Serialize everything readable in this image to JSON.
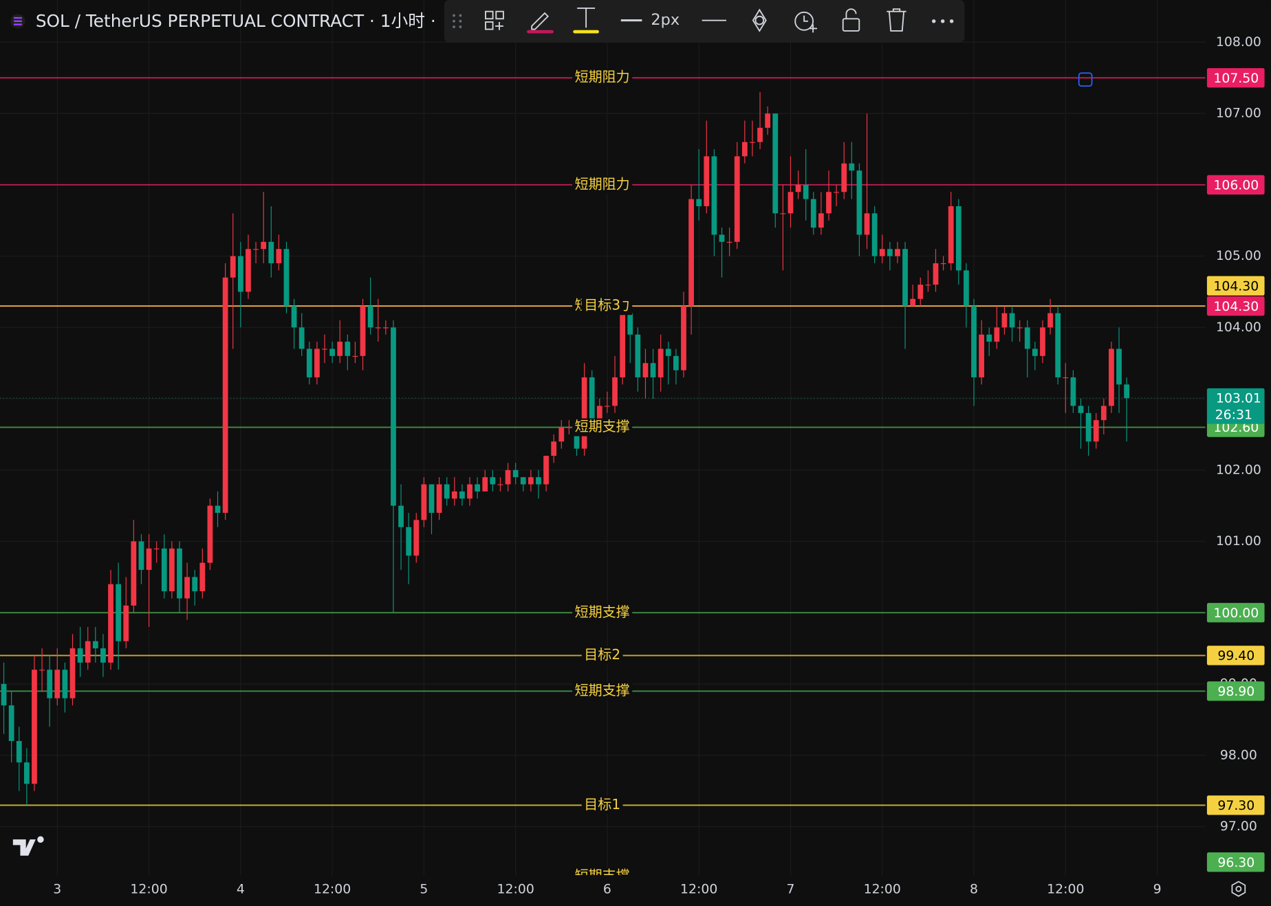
{
  "chart_data": {
    "type": "candlestick",
    "title": "SOL / TetherUS PERPETUAL CONTRACT · 1小时 ·",
    "up_color": "#f23645",
    "down_color": "#089981",
    "open": [
      99.0,
      98.7,
      98.2,
      97.9,
      97.6,
      99.2,
      99.2,
      98.8,
      99.2,
      98.8,
      99.5,
      99.3,
      99.6,
      99.5,
      99.3,
      100.4,
      99.6,
      100.1,
      101.0,
      100.6,
      100.9,
      100.9,
      100.3,
      100.9,
      100.2,
      100.5,
      100.3,
      100.7,
      101.5,
      101.4,
      104.7,
      105.0,
      104.5,
      105.1,
      105.1,
      105.2,
      104.9,
      105.1,
      104.3,
      104.0,
      103.7,
      103.3,
      103.7,
      103.7,
      103.6,
      103.8,
      103.6,
      103.6,
      104.3,
      104.0,
      104.0,
      104.0,
      101.5,
      101.2,
      100.8,
      101.3,
      101.8,
      101.4,
      101.8,
      101.6,
      101.7,
      101.6,
      101.8,
      101.7,
      101.9,
      101.8,
      101.8,
      102.0,
      101.9,
      101.8,
      101.9,
      101.8,
      102.2,
      102.4,
      102.6,
      102.6,
      102.3,
      103.3,
      102.6,
      102.9,
      102.9,
      103.3,
      104.2,
      103.9,
      103.3,
      103.5,
      103.3,
      103.7,
      103.6,
      103.4,
      104.3,
      105.8,
      105.7,
      106.4,
      105.3,
      105.2,
      105.2,
      106.4,
      106.6,
      106.6,
      106.8,
      107.0,
      105.6,
      105.6,
      105.9,
      106.0,
      105.8,
      105.4,
      105.6,
      105.9,
      105.9,
      106.3,
      106.2,
      105.3,
      105.6,
      105.0,
      105.1,
      105.0,
      105.1,
      104.3,
      104.4,
      104.6,
      104.6,
      104.9,
      104.9,
      105.7,
      104.8,
      104.3,
      103.3,
      103.9,
      103.8,
      104.0,
      104.2,
      104.0,
      104.0,
      103.7,
      103.6,
      104.0,
      104.2,
      103.3,
      103.3,
      102.9,
      102.8,
      102.4,
      102.7,
      102.9,
      103.7,
      103.2
    ],
    "high": [
      99.3,
      98.9,
      98.4,
      98.1,
      99.4,
      99.5,
      99.4,
      99.5,
      99.3,
      99.7,
      99.8,
      99.8,
      99.8,
      99.7,
      100.6,
      100.7,
      100.5,
      101.3,
      101.1,
      101.1,
      101.0,
      101.1,
      101.0,
      101.0,
      100.7,
      100.6,
      100.9,
      101.6,
      101.7,
      104.9,
      105.6,
      105.2,
      105.3,
      105.2,
      105.9,
      105.7,
      105.3,
      105.2,
      104.4,
      104.2,
      103.8,
      103.8,
      103.9,
      103.8,
      104.1,
      103.9,
      103.8,
      104.4,
      104.7,
      104.4,
      104.1,
      104.1,
      101.8,
      101.4,
      101.4,
      101.9,
      101.8,
      101.9,
      101.9,
      101.9,
      101.8,
      101.9,
      101.9,
      102.0,
      102.0,
      101.9,
      102.1,
      102.1,
      101.9,
      102.0,
      102.0,
      102.2,
      102.5,
      102.7,
      102.7,
      102.6,
      103.5,
      103.4,
      103.0,
      103.1,
      103.6,
      104.3,
      104.3,
      104.0,
      103.7,
      103.7,
      103.9,
      103.8,
      103.7,
      104.5,
      106.0,
      106.5,
      106.9,
      106.5,
      105.4,
      105.4,
      106.6,
      106.9,
      106.9,
      107.3,
      107.1,
      107.0,
      106.0,
      106.4,
      106.2,
      106.5,
      105.9,
      105.9,
      106.2,
      106.0,
      106.6,
      106.6,
      106.3,
      107.0,
      105.7,
      105.3,
      105.2,
      105.2,
      105.2,
      104.6,
      104.7,
      104.8,
      105.1,
      105.0,
      105.9,
      105.8,
      104.9,
      104.4,
      104.1,
      104.0,
      104.3,
      104.3,
      104.3,
      104.1,
      104.1,
      103.8,
      104.1,
      104.4,
      104.3,
      103.5,
      103.4,
      103.0,
      102.9,
      102.8,
      103.0,
      103.8,
      104.0,
      103.3
    ],
    "low": [
      98.3,
      97.9,
      97.5,
      97.3,
      97.5,
      98.9,
      98.4,
      98.7,
      98.6,
      98.7,
      99.1,
      99.2,
      99.3,
      99.1,
      99.2,
      99.2,
      99.5,
      100.0,
      100.4,
      99.8,
      100.7,
      100.2,
      100.2,
      100.0,
      99.9,
      100.1,
      100.2,
      100.6,
      101.2,
      101.3,
      103.7,
      104.0,
      104.4,
      104.9,
      104.9,
      104.7,
      104.8,
      104.2,
      103.7,
      103.6,
      103.2,
      103.2,
      103.5,
      103.5,
      103.5,
      103.4,
      103.5,
      103.4,
      103.9,
      103.8,
      103.9,
      100.0,
      100.6,
      100.4,
      100.7,
      101.2,
      101.1,
      101.3,
      101.5,
      101.5,
      101.5,
      101.5,
      101.6,
      101.7,
      101.7,
      101.7,
      101.7,
      101.8,
      101.7,
      101.7,
      101.6,
      101.7,
      102.1,
      102.3,
      102.5,
      102.2,
      102.2,
      102.5,
      102.5,
      102.8,
      102.8,
      103.2,
      103.5,
      103.1,
      103.0,
      103.0,
      103.1,
      103.2,
      103.2,
      103.3,
      103.9,
      105.5,
      105.6,
      105.0,
      104.7,
      105.0,
      105.1,
      106.3,
      106.4,
      106.5,
      106.7,
      105.4,
      104.8,
      105.4,
      105.8,
      105.5,
      105.3,
      105.3,
      105.5,
      105.7,
      105.8,
      105.8,
      105.0,
      105.1,
      104.9,
      104.9,
      104.8,
      104.9,
      103.7,
      104.3,
      104.3,
      104.5,
      104.5,
      104.8,
      104.8,
      104.6,
      104.0,
      102.9,
      103.2,
      103.6,
      103.7,
      103.9,
      103.8,
      103.8,
      103.3,
      103.4,
      103.5,
      103.9,
      103.2,
      102.8,
      102.8,
      102.3,
      102.2,
      102.3,
      102.5,
      102.8,
      102.8,
      102.4
    ],
    "close": [
      98.7,
      98.2,
      97.9,
      97.6,
      99.2,
      99.2,
      98.8,
      99.2,
      98.8,
      99.5,
      99.3,
      99.6,
      99.5,
      99.3,
      100.4,
      99.6,
      100.1,
      101.0,
      100.6,
      100.9,
      100.9,
      100.3,
      100.9,
      100.2,
      100.5,
      100.3,
      100.7,
      101.5,
      101.4,
      104.7,
      105.0,
      104.5,
      105.1,
      105.1,
      105.2,
      104.9,
      105.1,
      104.3,
      104.0,
      103.7,
      103.3,
      103.7,
      103.7,
      103.6,
      103.8,
      103.6,
      103.6,
      104.3,
      104.0,
      104.0,
      104.0,
      101.5,
      101.2,
      100.8,
      101.3,
      101.8,
      101.4,
      101.8,
      101.6,
      101.7,
      101.6,
      101.8,
      101.7,
      101.9,
      101.8,
      101.8,
      102.0,
      101.9,
      101.8,
      101.9,
      101.8,
      102.2,
      102.4,
      102.6,
      102.6,
      102.3,
      103.3,
      102.6,
      102.9,
      102.9,
      103.3,
      104.2,
      103.9,
      103.3,
      103.5,
      103.3,
      103.7,
      103.6,
      103.4,
      104.3,
      105.8,
      105.7,
      106.4,
      105.3,
      105.2,
      105.2,
      106.4,
      106.6,
      106.6,
      106.8,
      107.0,
      105.6,
      105.6,
      105.9,
      106.0,
      105.8,
      105.4,
      105.6,
      105.9,
      105.9,
      106.3,
      106.2,
      105.3,
      105.6,
      105.0,
      105.1,
      105.0,
      105.1,
      104.3,
      104.4,
      104.6,
      104.6,
      104.9,
      104.9,
      105.7,
      104.8,
      104.3,
      103.3,
      103.9,
      103.8,
      104.0,
      104.2,
      104.0,
      104.0,
      103.7,
      103.6,
      104.0,
      104.2,
      103.3,
      103.3,
      102.9,
      102.8,
      102.4,
      102.7,
      102.9,
      103.7,
      103.2,
      103.01
    ],
    "countdown": "26:31",
    "xlim": [
      -0.5,
      157.3
    ],
    "xticks": [
      {
        "value": 7,
        "label": "3"
      },
      {
        "value": 19,
        "label": "12:00"
      },
      {
        "value": 31,
        "label": "4"
      },
      {
        "value": 43,
        "label": "12:00"
      },
      {
        "value": 55,
        "label": "5"
      },
      {
        "value": 67,
        "label": "12:00"
      },
      {
        "value": 79,
        "label": "6"
      },
      {
        "value": 91,
        "label": "12:00"
      },
      {
        "value": 103,
        "label": "7"
      },
      {
        "value": 115,
        "label": "12:00"
      },
      {
        "value": 127,
        "label": "8"
      },
      {
        "value": 139,
        "label": "12:00"
      },
      {
        "value": 151,
        "label": "9"
      }
    ],
    "ylim": [
      96.32,
      108.59
    ],
    "yticks": [
      {
        "value": 97,
        "label": "97.00"
      },
      {
        "value": 98,
        "label": "98.00"
      },
      {
        "value": 99,
        "label": "99.00"
      },
      {
        "value": 100,
        "label": "100.00"
      },
      {
        "value": 101,
        "label": "101.00"
      },
      {
        "value": 102,
        "label": "102.00"
      },
      {
        "value": 103,
        "label": "103.00"
      },
      {
        "value": 104,
        "label": "104.00"
      },
      {
        "value": 105,
        "label": "105.00"
      },
      {
        "value": 106,
        "label": "106.00"
      },
      {
        "value": 107,
        "label": "107.00"
      },
      {
        "value": 108,
        "label": "108.00"
      }
    ],
    "grid": true,
    "label_color": "#f5d142",
    "lines": [
      {
        "label": "短期阻力",
        "value": 107.5,
        "value_label": "107.50",
        "color": "#e91e63"
      },
      {
        "label": "短期阻力",
        "value": 106,
        "value_label": "106.00",
        "color": "#e91e63"
      },
      {
        "label": "短期阻力",
        "value": 104.3,
        "value_label": "104.30",
        "color": "#e91e63"
      },
      {
        "label": "目标3",
        "value": 104.3,
        "value_label": "104.30",
        "color": "#f5d142"
      },
      {
        "label": "短期支撑",
        "value": 102.6,
        "value_label": "102.60",
        "color": "#4caf50"
      },
      {
        "label": "短期支撑",
        "value": 100,
        "value_label": "100.00",
        "color": "#4caf50"
      },
      {
        "label": "目标2",
        "value": 99.4,
        "value_label": "99.40",
        "color": "#f5d142"
      },
      {
        "label": "短期支撑",
        "value": 98.9,
        "value_label": "98.90",
        "color": "#4caf50"
      },
      {
        "label": "目标1",
        "value": 97.3,
        "value_label": "97.30",
        "color": "#f5d142"
      },
      {
        "label": "短期支撑",
        "value": 96.3,
        "value_label": "96.30",
        "color": "#4caf50"
      }
    ]
  },
  "toolbar": {
    "width_label": "2px"
  }
}
